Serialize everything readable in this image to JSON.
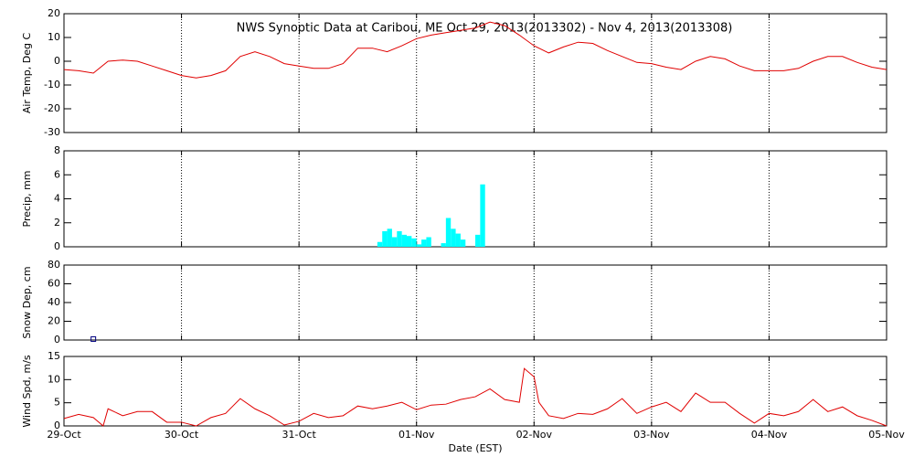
{
  "chart_data": [
    {
      "type": "line",
      "title": "NWS Synoptic Data at Caribou, ME   Oct 29, 2013(2013302) - Nov  4, 2013(2013308)",
      "ylabel": "Air Temp, Deg C",
      "color": "#e00000",
      "xlim": [
        0,
        168
      ],
      "ylim": [
        -30,
        20
      ],
      "yticks": [
        -30,
        -20,
        -10,
        0,
        10,
        20
      ],
      "x": [
        0,
        3,
        6,
        9,
        12,
        15,
        18,
        21,
        24,
        27,
        30,
        33,
        36,
        39,
        42,
        45,
        48,
        51,
        54,
        57,
        60,
        63,
        66,
        69,
        72,
        75,
        78,
        81,
        84,
        87,
        90,
        93,
        96,
        99,
        102,
        105,
        108,
        111,
        114,
        117,
        120,
        123,
        126,
        129,
        132,
        135,
        138,
        141,
        144,
        147,
        150,
        153,
        156,
        159,
        162,
        165,
        168
      ],
      "values": [
        -3.5,
        -4,
        -5,
        0,
        0.5,
        0,
        -2,
        -4,
        -6,
        -7,
        -6,
        -4,
        2,
        4,
        2,
        -1,
        -2,
        -3,
        -3,
        -1,
        5.5,
        5.5,
        4,
        6.5,
        9.5,
        11,
        12,
        13,
        14,
        16.5,
        15,
        11,
        6.5,
        3.5,
        6,
        8,
        7.5,
        4.5,
        2,
        -0.5,
        -1,
        -2.5,
        -3.5,
        0,
        2,
        1,
        -2,
        -4,
        -4,
        -4,
        -3,
        0,
        2,
        2,
        -0.5,
        -2.5,
        -3.5
      ]
    },
    {
      "type": "bar",
      "ylabel": "Precip, mm",
      "color": "#00ffff",
      "xlim": [
        0,
        168
      ],
      "ylim": [
        0,
        8
      ],
      "yticks": [
        0,
        2,
        4,
        6,
        8
      ],
      "x": [
        64,
        65,
        66,
        67,
        68,
        69,
        70,
        71,
        72,
        73,
        74,
        77,
        78,
        79,
        80,
        81,
        84,
        85
      ],
      "values": [
        0.4,
        1.3,
        1.5,
        0.8,
        1.3,
        1.0,
        0.9,
        0.7,
        0.2,
        0.6,
        0.8,
        0.3,
        2.4,
        1.5,
        1.1,
        0.6,
        1.0,
        5.2
      ]
    },
    {
      "type": "scatter",
      "ylabel": "Snow Dep, cm",
      "color": "#000080",
      "xlim": [
        0,
        168
      ],
      "ylim": [
        0,
        80
      ],
      "yticks": [
        0,
        20,
        40,
        60,
        80
      ],
      "x": [
        6
      ],
      "values": [
        1
      ]
    },
    {
      "type": "line",
      "ylabel": "Wind Spd, m/s",
      "xlabel": "Date (EST)",
      "color": "#e00000",
      "xlim": [
        0,
        168
      ],
      "ylim": [
        0,
        15
      ],
      "yticks": [
        0,
        5,
        10,
        15
      ],
      "xticks": [
        {
          "value": 0,
          "label": "29-Oct"
        },
        {
          "value": 24,
          "label": "30-Oct"
        },
        {
          "value": 48,
          "label": "31-Oct"
        },
        {
          "value": 72,
          "label": "01-Nov"
        },
        {
          "value": 96,
          "label": "02-Nov"
        },
        {
          "value": 120,
          "label": "03-Nov"
        },
        {
          "value": 144,
          "label": "04-Nov"
        },
        {
          "value": 168,
          "label": "05-Nov"
        }
      ],
      "x": [
        0,
        3,
        6,
        8,
        9,
        12,
        15,
        18,
        21,
        24,
        27,
        30,
        33,
        36,
        39,
        42,
        45,
        48,
        51,
        54,
        57,
        60,
        63,
        66,
        69,
        72,
        75,
        78,
        81,
        84,
        87,
        90,
        93,
        94,
        96,
        97,
        99,
        102,
        105,
        108,
        111,
        114,
        117,
        120,
        123,
        126,
        129,
        132,
        135,
        138,
        141,
        144,
        147,
        150,
        153,
        156,
        159,
        162,
        165,
        168
      ],
      "values": [
        1.6,
        2.5,
        1.8,
        0,
        3.7,
        2.2,
        3.1,
        3.1,
        0.8,
        0.8,
        0,
        1.8,
        2.7,
        5.9,
        3.7,
        2.2,
        0.2,
        1.0,
        2.7,
        1.8,
        2.2,
        4.3,
        3.7,
        4.3,
        5.1,
        3.5,
        4.5,
        4.7,
        5.7,
        6.3,
        8.0,
        5.7,
        5.1,
        12.4,
        10.6,
        5.1,
        2.2,
        1.6,
        2.7,
        2.5,
        3.7,
        5.9,
        2.7,
        4.1,
        5.1,
        3.1,
        7.1,
        5.1,
        5.1,
        2.7,
        0.6,
        2.7,
        2.2,
        3.1,
        5.7,
        3.1,
        4.1,
        2.2,
        1.2,
        0
      ]
    }
  ]
}
